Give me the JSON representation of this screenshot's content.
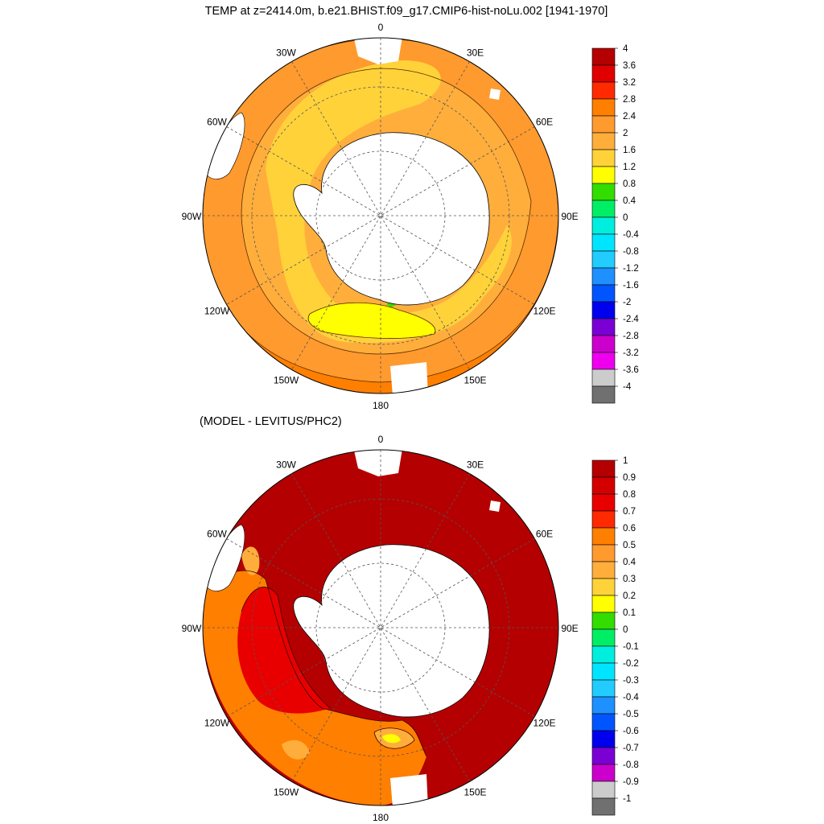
{
  "figure": {
    "title": "TEMP at z=2414.0m, b.e21.BHIST.f09_g17.CMIP6-hist-noLu.002 [1941-1970]",
    "subtitle": "(MODEL - LEVITUS/PHC2)"
  },
  "longitude_labels": [
    "0",
    "30E",
    "60E",
    "90E",
    "120E",
    "150E",
    "180",
    "150W",
    "120W",
    "90W",
    "60W",
    "30W"
  ],
  "colors": {
    "land": "#ffffff",
    "coast": "#000000",
    "grid": "#555555"
  },
  "chart_data": [
    {
      "type": "heatmap",
      "title": "TEMP at z=2414.0m, b.e21.BHIST.f09_g17.CMIP6-hist-noLu.002 [1941-1970]",
      "projection": "south polar stereographic",
      "colorbar": {
        "labels": [
          "4",
          "3.6",
          "3.2",
          "2.8",
          "2.4",
          "2",
          "1.6",
          "1.2",
          "0.8",
          "0.4",
          "0",
          "-0.4",
          "-0.8",
          "-1.2",
          "-1.6",
          "-2",
          "-2.4",
          "-2.8",
          "-3.2",
          "-3.6",
          "-4"
        ],
        "colors": [
          "#b40000",
          "#e00000",
          "#ff2a00",
          "#ff7f00",
          "#ff9a2e",
          "#ffae3c",
          "#ffd23a",
          "#ffff00",
          "#33dd00",
          "#00ee66",
          "#00eedd",
          "#00e5ff",
          "#22ccff",
          "#1e90ff",
          "#0055ff",
          "#0000ee",
          "#7a00d4",
          "#cc00cc",
          "#ee00ee",
          "#cccccc",
          "#707070"
        ]
      },
      "zones": [
        {
          "name": "polar yellow band",
          "approx_value": 1.3,
          "color": "#ffff00"
        },
        {
          "name": "inner gold band",
          "approx_value": 1.8,
          "color": "#ffd23a"
        },
        {
          "name": "middle orange band",
          "approx_value": 2.2,
          "color": "#ffae3c"
        },
        {
          "name": "outer orange band",
          "approx_value": 2.6,
          "color": "#ff9a2e"
        },
        {
          "name": "north rim band",
          "approx_value": 3.0,
          "color": "#ff7f00"
        }
      ]
    },
    {
      "type": "heatmap",
      "title": "(MODEL - LEVITUS/PHC2)",
      "projection": "south polar stereographic",
      "colorbar": {
        "labels": [
          "1",
          "0.9",
          "0.8",
          "0.7",
          "0.6",
          "0.5",
          "0.4",
          "0.3",
          "0.2",
          "0.1",
          "0",
          "-0.1",
          "-0.2",
          "-0.3",
          "-0.4",
          "-0.5",
          "-0.6",
          "-0.7",
          "-0.8",
          "-0.9",
          "-1"
        ],
        "colors": [
          "#b40000",
          "#d40000",
          "#e80000",
          "#ff2a00",
          "#ff7f00",
          "#ff9a2e",
          "#ffae3c",
          "#ffd23a",
          "#ffff00",
          "#33dd00",
          "#00ee66",
          "#00eedd",
          "#00e5ff",
          "#22ccff",
          "#1e90ff",
          "#0055ff",
          "#0000ee",
          "#7a00d4",
          "#cc00cc",
          "#cccccc",
          "#707070"
        ]
      },
      "zones": [
        {
          "name": "broad warm anomaly",
          "approx_value": 1.0,
          "color": "#b40000"
        },
        {
          "name": "pacific red sector",
          "approx_value": 0.85,
          "color": "#e80000"
        },
        {
          "name": "pacific orange sector",
          "approx_value": 0.6,
          "color": "#ff7f00"
        },
        {
          "name": "ross sea anomalies",
          "approx_value": 0.4,
          "color": "#ffae3c"
        },
        {
          "name": "local maxima",
          "approx_value": 0.25,
          "color": "#ffff00"
        }
      ]
    }
  ]
}
